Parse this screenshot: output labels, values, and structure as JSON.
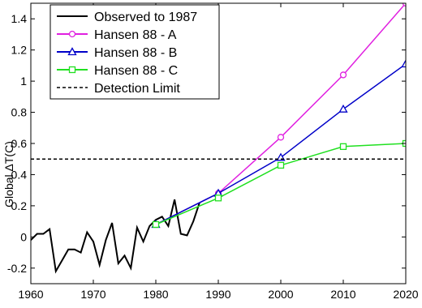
{
  "chart_data": {
    "type": "line",
    "title": "",
    "xlabel": "",
    "ylabel": "Global ΔT(C)",
    "xlim": [
      1960,
      2020
    ],
    "ylim": [
      -0.3,
      1.5
    ],
    "xticks": [
      1960,
      1970,
      1980,
      1990,
      2000,
      2010,
      2020
    ],
    "yticks": [
      -0.2,
      0,
      0.2,
      0.4,
      0.6,
      0.8,
      1,
      1.2,
      1.4
    ],
    "ytick_labels": [
      "-0.2",
      "0",
      "0.2",
      "0.4",
      "0.6",
      "0.8",
      "1",
      "1.2",
      "1.4"
    ],
    "xtick_labels": [
      "1960",
      "1970",
      "1980",
      "1990",
      "2000",
      "2010",
      "2020"
    ],
    "grid": false,
    "legend_position": "top-left",
    "series": [
      {
        "name": "Observed to 1987",
        "color": "#000000",
        "marker": "none",
        "style": "solid",
        "x": [
          1960,
          1961,
          1962,
          1963,
          1964,
          1965,
          1966,
          1967,
          1968,
          1969,
          1970,
          1971,
          1972,
          1973,
          1974,
          1975,
          1976,
          1977,
          1978,
          1979,
          1980,
          1981,
          1982,
          1983,
          1984,
          1985,
          1986,
          1987
        ],
        "y": [
          -0.02,
          0.02,
          0.02,
          0.05,
          -0.22,
          -0.15,
          -0.08,
          -0.08,
          -0.1,
          0.03,
          -0.03,
          -0.18,
          -0.02,
          0.09,
          -0.17,
          -0.12,
          -0.2,
          0.06,
          -0.03,
          0.07,
          0.11,
          0.13,
          0.07,
          0.24,
          0.02,
          0.01,
          0.1,
          0.22
        ]
      },
      {
        "name": "Hansen 88 - A",
        "color": "#e020e0",
        "marker": "circle",
        "style": "solid",
        "x": [
          1980,
          1990,
          2000,
          2010,
          2020
        ],
        "y": [
          0.08,
          0.28,
          0.64,
          1.04,
          1.5
        ]
      },
      {
        "name": "Hansen 88 - B",
        "color": "#0000c8",
        "marker": "triangle",
        "style": "solid",
        "x": [
          1980,
          1990,
          2000,
          2010,
          2020
        ],
        "y": [
          0.08,
          0.28,
          0.51,
          0.82,
          1.11
        ]
      },
      {
        "name": "Hansen 88 - C",
        "color": "#20e020",
        "marker": "square",
        "style": "solid",
        "x": [
          1980,
          1990,
          2000,
          2010,
          2020
        ],
        "y": [
          0.08,
          0.25,
          0.46,
          0.58,
          0.6
        ]
      },
      {
        "name": "Detection Limit",
        "color": "#000000",
        "marker": "none",
        "style": "dashed",
        "x": [
          1960,
          2020
        ],
        "y": [
          0.5,
          0.5
        ]
      }
    ]
  }
}
